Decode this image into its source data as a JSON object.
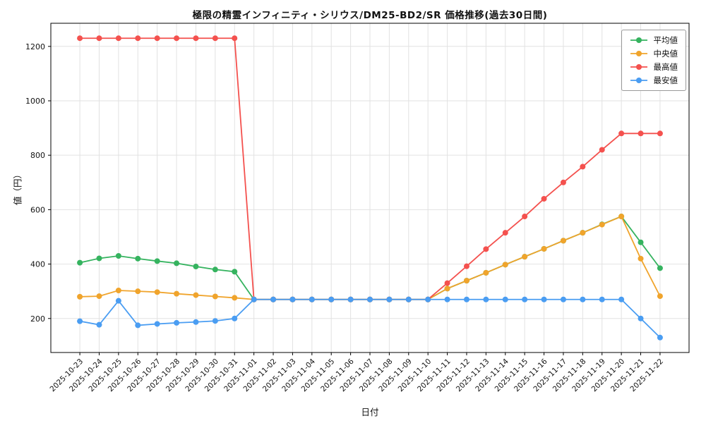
{
  "chart_data": {
    "type": "line",
    "title": "極限の精霊インフィニティ・シリウス/DM25-BD2/SR 価格推移(過去30日間)",
    "xlabel": "日付",
    "ylabel": "値（円）",
    "ylim": [
      75,
      1285
    ],
    "yticks": [
      200,
      400,
      600,
      800,
      1000,
      1200
    ],
    "grid": true,
    "legend_position": "upper right",
    "categories": [
      "2025-10-23",
      "2025-10-24",
      "2025-10-25",
      "2025-10-26",
      "2025-10-27",
      "2025-10-28",
      "2025-10-29",
      "2025-10-30",
      "2025-10-31",
      "2025-11-01",
      "2025-11-02",
      "2025-11-03",
      "2025-11-04",
      "2025-11-05",
      "2025-11-06",
      "2025-11-07",
      "2025-11-08",
      "2025-11-09",
      "2025-11-10",
      "2025-11-11",
      "2025-11-12",
      "2025-11-13",
      "2025-11-14",
      "2025-11-15",
      "2025-11-16",
      "2025-11-17",
      "2025-11-18",
      "2025-11-19",
      "2025-11-20",
      "2025-11-21",
      "2025-11-22"
    ],
    "series": [
      {
        "name": "平均値",
        "color": "#35b35f",
        "values": [
          405,
          421,
          430,
          420,
          411,
          403,
          391,
          380,
          372,
          270,
          270,
          270,
          270,
          270,
          270,
          270,
          270,
          270,
          270,
          310,
          339,
          368,
          398,
          427,
          456,
          486,
          515,
          546,
          575,
          480,
          385
        ]
      },
      {
        "name": "中央値",
        "color": "#f0a42c",
        "values": [
          280,
          282,
          303,
          300,
          297,
          291,
          286,
          281,
          276,
          270,
          270,
          270,
          270,
          270,
          270,
          270,
          270,
          270,
          270,
          310,
          339,
          368,
          398,
          427,
          456,
          486,
          515,
          545,
          575,
          420,
          282
        ]
      },
      {
        "name": "最高値",
        "color": "#f4514e",
        "values": [
          1230,
          1230,
          1230,
          1230,
          1230,
          1230,
          1230,
          1230,
          1230,
          270,
          270,
          270,
          270,
          270,
          270,
          270,
          270,
          270,
          270,
          330,
          392,
          455,
          515,
          575,
          640,
          700,
          758,
          820,
          880,
          880,
          880
        ]
      },
      {
        "name": "最安値",
        "color": "#4a9df2",
        "values": [
          190,
          177,
          265,
          175,
          180,
          184,
          187,
          191,
          200,
          270,
          270,
          270,
          270,
          270,
          270,
          270,
          270,
          270,
          270,
          270,
          270,
          270,
          270,
          270,
          270,
          270,
          270,
          270,
          270,
          200,
          130
        ]
      }
    ]
  }
}
